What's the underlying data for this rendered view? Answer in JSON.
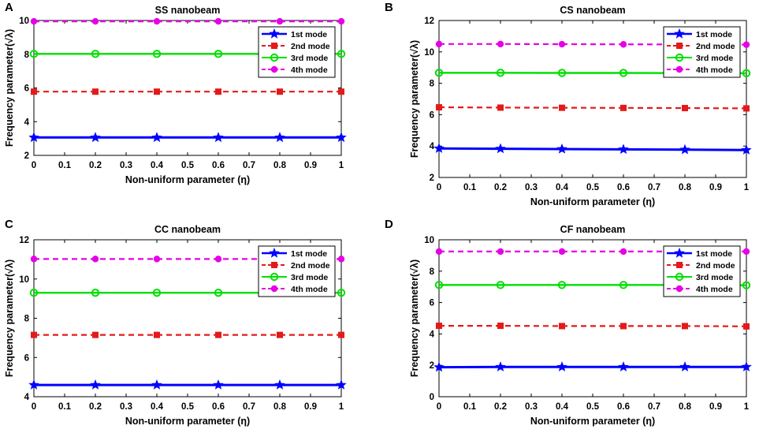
{
  "figure": {
    "x_ticks": [
      "0",
      "0.1",
      "0.2",
      "0.3",
      "0.4",
      "0.5",
      "0.6",
      "0.7",
      "0.8",
      "0.9",
      "1"
    ],
    "xlabel": "Non-uniform parameter (η)",
    "ylabel": "Frequency parameter(√λ)",
    "legend": [
      "1st mode",
      "2nd mode",
      "3rd mode",
      "4th mode"
    ]
  },
  "colors": {
    "mode1": "#0000ff",
    "mode2": "#e41a1a",
    "mode3": "#00e000",
    "mode4": "#e600e6"
  },
  "chart_data": [
    {
      "panel": "A",
      "type": "line",
      "title": "SS nanobeam",
      "xlabel": "Non-uniform parameter (η)",
      "ylabel": "Frequency parameter(√λ)",
      "xlim": [
        0,
        1
      ],
      "ylim": [
        2,
        10
      ],
      "y_ticks": [
        "2",
        "4",
        "6",
        "8",
        "10"
      ],
      "x": [
        0,
        0.2,
        0.4,
        0.6,
        0.8,
        1
      ],
      "legend_position": "top-right",
      "series": [
        {
          "name": "1st mode",
          "values": [
            3.06,
            3.06,
            3.06,
            3.06,
            3.06,
            3.06
          ]
        },
        {
          "name": "2nd mode",
          "values": [
            5.78,
            5.78,
            5.78,
            5.78,
            5.78,
            5.78
          ]
        },
        {
          "name": "3rd mode",
          "values": [
            8.02,
            8.02,
            8.02,
            8.02,
            8.02,
            8.02
          ]
        },
        {
          "name": "4th mode",
          "values": [
            9.95,
            9.95,
            9.95,
            9.95,
            9.95,
            9.95
          ]
        }
      ]
    },
    {
      "panel": "B",
      "type": "line",
      "title": "CS nanobeam",
      "xlabel": "Non-uniform parameter (η)",
      "ylabel": "Frequency parameter(√λ)",
      "xlim": [
        0,
        1
      ],
      "ylim": [
        2,
        12
      ],
      "y_ticks": [
        "2",
        "4",
        "6",
        "8",
        "10",
        "12"
      ],
      "x": [
        0,
        0.2,
        0.4,
        0.6,
        0.8,
        1
      ],
      "legend_position": "top-right",
      "series": [
        {
          "name": "1st mode",
          "values": [
            3.85,
            3.83,
            3.81,
            3.79,
            3.77,
            3.75
          ]
        },
        {
          "name": "2nd mode",
          "values": [
            6.47,
            6.45,
            6.44,
            6.43,
            6.42,
            6.4
          ]
        },
        {
          "name": "3rd mode",
          "values": [
            8.67,
            8.67,
            8.66,
            8.66,
            8.65,
            8.64
          ]
        },
        {
          "name": "4th mode",
          "values": [
            10.5,
            10.5,
            10.49,
            10.48,
            10.47,
            10.46
          ]
        }
      ]
    },
    {
      "panel": "C",
      "type": "line",
      "title": "CC nanobeam",
      "xlabel": "Non-uniform parameter (η)",
      "ylabel": "Frequency parameter(√λ)",
      "xlim": [
        0,
        1
      ],
      "ylim": [
        4,
        12
      ],
      "y_ticks": [
        "4",
        "6",
        "8",
        "10",
        "12"
      ],
      "x": [
        0,
        0.2,
        0.4,
        0.6,
        0.8,
        1
      ],
      "legend_position": "top-right",
      "series": [
        {
          "name": "1st mode",
          "values": [
            4.6,
            4.6,
            4.6,
            4.6,
            4.6,
            4.6
          ]
        },
        {
          "name": "2nd mode",
          "values": [
            7.15,
            7.15,
            7.15,
            7.15,
            7.15,
            7.15
          ]
        },
        {
          "name": "3rd mode",
          "values": [
            9.3,
            9.3,
            9.3,
            9.3,
            9.3,
            9.3
          ]
        },
        {
          "name": "4th mode",
          "values": [
            11.02,
            11.02,
            11.02,
            11.02,
            11.02,
            11.02
          ]
        }
      ]
    },
    {
      "panel": "D",
      "type": "line",
      "title": "CF nanobeam",
      "xlabel": "Non-uniform parameter (η)",
      "ylabel": "Frequency parameter(√λ)",
      "xlim": [
        0,
        1
      ],
      "ylim": [
        0,
        10
      ],
      "y_ticks": [
        "0",
        "2",
        "4",
        "6",
        "8",
        "10"
      ],
      "x": [
        0,
        0.2,
        0.4,
        0.6,
        0.8,
        1
      ],
      "legend_position": "top-right",
      "series": [
        {
          "name": "1st mode",
          "values": [
            1.88,
            1.9,
            1.9,
            1.9,
            1.9,
            1.9
          ]
        },
        {
          "name": "2nd mode",
          "values": [
            4.52,
            4.52,
            4.5,
            4.5,
            4.5,
            4.48
          ]
        },
        {
          "name": "3rd mode",
          "values": [
            7.12,
            7.12,
            7.12,
            7.12,
            7.12,
            7.1
          ]
        },
        {
          "name": "4th mode",
          "values": [
            9.25,
            9.25,
            9.25,
            9.25,
            9.25,
            9.25
          ]
        }
      ]
    }
  ]
}
